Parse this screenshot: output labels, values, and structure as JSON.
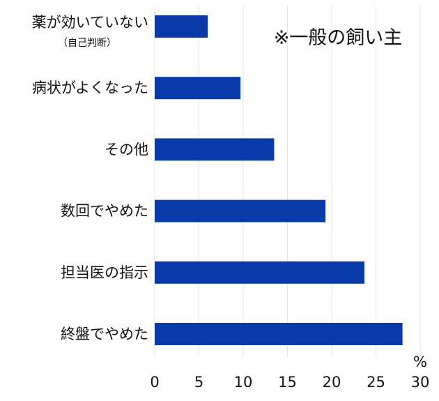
{
  "chart_data": {
    "type": "bar",
    "orientation": "horizontal",
    "categories": [
      {
        "label": "薬が効いていない",
        "sublabel": "（自己判断）"
      },
      {
        "label": "病状がよくなった"
      },
      {
        "label": "その他"
      },
      {
        "label": "数回でやめた"
      },
      {
        "label": "担当医の指示"
      },
      {
        "label": "終盤でやめた"
      }
    ],
    "values": [
      6,
      9.7,
      13.5,
      19.3,
      23.7,
      28
    ],
    "xlim": [
      0,
      30
    ],
    "xticks": [
      "0",
      "5",
      "10",
      "15",
      "20",
      "25",
      "30"
    ],
    "xunit": "%",
    "annotation": "※一般の飼い主",
    "grid": true,
    "bar_color": "#0a3aa8",
    "grid_color": "#e6e6e6"
  }
}
